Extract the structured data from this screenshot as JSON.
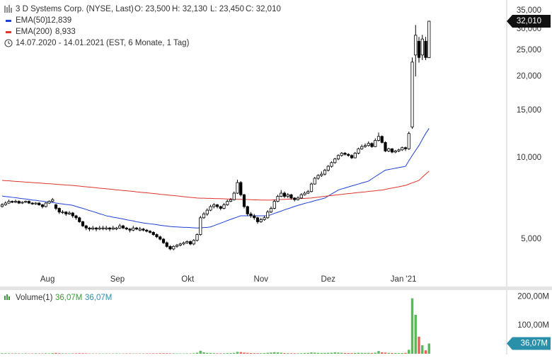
{
  "chart_data": [
    {
      "type": "candlestick",
      "title": "3 D Systems Corp. (NYSE, Last)",
      "open_label": "O: 23,500",
      "high_label": "H: 32,130",
      "low_label": "L: 23,450",
      "close_label": "C: 32,010",
      "date_range": "14.07.2020 - 14.01.2021",
      "note": "(EST, 6 Monate, 1 Tag)",
      "last_label": "32,010",
      "log_scale": true,
      "grid": true,
      "ylim": [
        3.34,
        38.35
      ],
      "yticks": [
        {
          "value": 35,
          "label": "35,000"
        },
        {
          "value": 30,
          "label": "30,000"
        },
        {
          "value": 25,
          "label": "25,000"
        },
        {
          "value": 20,
          "label": "20,000"
        },
        {
          "value": 15,
          "label": "15,000"
        },
        {
          "value": 10,
          "label": "10,000"
        },
        {
          "value": 5,
          "label": "5,000"
        }
      ],
      "xlim": [
        -0.63,
        150.1
      ],
      "xticks": [
        {
          "value": 13.5,
          "label": "Aug"
        },
        {
          "value": 34.3,
          "label": "Sep"
        },
        {
          "value": 55.2,
          "label": "Okt"
        },
        {
          "value": 77,
          "label": "Nov"
        },
        {
          "value": 97,
          "label": "Dez"
        },
        {
          "value": 119.4,
          "label": "Jan '21"
        }
      ],
      "up_color": "#ffffff",
      "down_color": "#000000",
      "ohlc": [
        [
          6.6,
          6.8,
          6.55,
          6.7
        ],
        [
          6.7,
          6.9,
          6.65,
          6.8
        ],
        [
          6.8,
          7.0,
          6.75,
          6.9
        ],
        [
          6.9,
          6.95,
          6.8,
          6.85
        ],
        [
          6.85,
          7.0,
          6.8,
          6.9
        ],
        [
          6.9,
          6.95,
          6.75,
          6.8
        ],
        [
          6.8,
          6.9,
          6.75,
          6.85
        ],
        [
          6.85,
          6.95,
          6.8,
          6.9
        ],
        [
          6.9,
          6.95,
          6.75,
          6.8
        ],
        [
          6.8,
          6.85,
          6.7,
          6.75
        ],
        [
          6.75,
          6.85,
          6.7,
          6.8
        ],
        [
          6.8,
          6.85,
          6.65,
          6.7
        ],
        [
          6.7,
          6.75,
          6.5,
          6.6
        ],
        [
          6.6,
          6.85,
          6.55,
          6.8
        ],
        [
          6.8,
          6.95,
          6.75,
          6.9
        ],
        [
          6.9,
          7.1,
          6.85,
          7.0
        ],
        [
          6.7,
          6.75,
          6.4,
          6.5
        ],
        [
          6.5,
          6.55,
          6.2,
          6.3
        ],
        [
          6.3,
          6.4,
          6.2,
          6.3
        ],
        [
          6.3,
          6.35,
          6.1,
          6.2
        ],
        [
          6.2,
          6.35,
          6.15,
          6.25
        ],
        [
          6.25,
          6.3,
          6.0,
          6.1
        ],
        [
          6.1,
          6.15,
          5.9,
          6.0
        ],
        [
          6.0,
          6.05,
          5.75,
          5.8
        ],
        [
          5.8,
          5.85,
          5.55,
          5.6
        ],
        [
          5.6,
          5.65,
          5.4,
          5.5
        ],
        [
          5.5,
          5.55,
          5.35,
          5.45
        ],
        [
          5.45,
          5.6,
          5.4,
          5.5
        ],
        [
          5.5,
          5.55,
          5.35,
          5.45
        ],
        [
          5.45,
          5.6,
          5.4,
          5.5
        ],
        [
          5.5,
          5.6,
          5.4,
          5.5
        ],
        [
          5.45,
          5.6,
          5.4,
          5.5
        ],
        [
          5.5,
          5.55,
          5.35,
          5.45
        ],
        [
          5.45,
          5.6,
          5.4,
          5.5
        ],
        [
          5.45,
          5.55,
          5.4,
          5.5
        ],
        [
          5.5,
          5.7,
          5.45,
          5.6
        ],
        [
          5.6,
          5.65,
          5.45,
          5.5
        ],
        [
          5.5,
          5.55,
          5.4,
          5.45
        ],
        [
          5.45,
          5.5,
          5.3,
          5.4
        ],
        [
          5.4,
          5.6,
          5.35,
          5.5
        ],
        [
          5.5,
          5.55,
          5.4,
          5.45
        ],
        [
          5.4,
          5.55,
          5.35,
          5.45
        ],
        [
          5.45,
          5.5,
          5.35,
          5.4
        ],
        [
          5.4,
          5.45,
          5.3,
          5.35
        ],
        [
          5.35,
          5.4,
          5.25,
          5.3
        ],
        [
          5.3,
          5.35,
          5.15,
          5.2
        ],
        [
          5.2,
          5.25,
          5.05,
          5.1
        ],
        [
          5.1,
          5.15,
          4.95,
          5.0
        ],
        [
          5.0,
          5.05,
          4.8,
          4.85
        ],
        [
          4.85,
          4.9,
          4.65,
          4.7
        ],
        [
          4.7,
          4.75,
          4.55,
          4.6
        ],
        [
          4.6,
          4.75,
          4.55,
          4.7
        ],
        [
          4.7,
          4.8,
          4.65,
          4.75
        ],
        [
          4.75,
          4.85,
          4.7,
          4.8
        ],
        [
          4.8,
          4.9,
          4.75,
          4.85
        ],
        [
          4.85,
          4.95,
          4.8,
          4.9
        ],
        [
          4.9,
          4.95,
          4.75,
          4.8
        ],
        [
          4.8,
          5.0,
          4.75,
          4.95
        ],
        [
          4.95,
          5.25,
          4.9,
          5.2
        ],
        [
          5.2,
          6.1,
          5.15,
          6.0
        ],
        [
          6.0,
          6.3,
          5.95,
          6.2
        ],
        [
          6.2,
          6.5,
          6.1,
          6.4
        ],
        [
          6.4,
          6.7,
          6.35,
          6.6
        ],
        [
          6.6,
          6.8,
          6.5,
          6.7
        ],
        [
          6.7,
          6.75,
          6.5,
          6.6
        ],
        [
          6.6,
          6.65,
          6.4,
          6.5
        ],
        [
          6.5,
          6.8,
          6.45,
          6.7
        ],
        [
          6.7,
          7.0,
          6.65,
          6.9
        ],
        [
          6.9,
          7.1,
          6.85,
          7.0
        ],
        [
          7.0,
          7.5,
          6.95,
          7.4
        ],
        [
          7.4,
          8.3,
          7.35,
          8.1
        ],
        [
          8.1,
          8.2,
          7.2,
          7.3
        ],
        [
          7.3,
          7.35,
          6.5,
          6.6
        ],
        [
          6.6,
          6.65,
          6.1,
          6.2
        ],
        [
          6.2,
          6.3,
          6.0,
          6.1
        ],
        [
          6.1,
          6.2,
          5.9,
          6.0
        ],
        [
          6.0,
          6.05,
          5.7,
          5.8
        ],
        [
          5.8,
          6.0,
          5.75,
          5.9
        ],
        [
          5.9,
          6.1,
          5.85,
          6.0
        ],
        [
          6.0,
          6.4,
          5.95,
          6.3
        ],
        [
          6.3,
          6.6,
          6.25,
          6.5
        ],
        [
          6.5,
          7.0,
          6.45,
          6.9
        ],
        [
          6.9,
          7.3,
          6.85,
          7.2
        ],
        [
          7.2,
          7.6,
          7.15,
          7.4
        ],
        [
          7.4,
          7.5,
          7.1,
          7.2
        ],
        [
          7.2,
          7.4,
          7.1,
          7.3
        ],
        [
          7.3,
          7.35,
          7.0,
          7.1
        ],
        [
          7.1,
          7.15,
          6.9,
          7.0
        ],
        [
          7.0,
          7.2,
          6.95,
          7.1
        ],
        [
          7.1,
          7.4,
          7.05,
          7.3
        ],
        [
          7.3,
          7.5,
          7.25,
          7.4
        ],
        [
          7.4,
          7.6,
          7.35,
          7.5
        ],
        [
          7.5,
          8.1,
          7.45,
          8.0
        ],
        [
          8.0,
          8.5,
          7.95,
          8.4
        ],
        [
          8.4,
          8.7,
          8.3,
          8.6
        ],
        [
          8.6,
          8.9,
          8.5,
          8.7
        ],
        [
          8.7,
          9.1,
          8.6,
          9.0
        ],
        [
          9.0,
          9.4,
          8.9,
          9.3
        ],
        [
          9.3,
          9.7,
          9.2,
          9.6
        ],
        [
          9.6,
          10.0,
          9.5,
          9.9
        ],
        [
          9.9,
          10.3,
          9.8,
          10.2
        ],
        [
          10.2,
          10.5,
          10.1,
          10.4
        ],
        [
          10.4,
          10.5,
          10.2,
          10.3
        ],
        [
          10.3,
          10.4,
          10.1,
          10.2
        ],
        [
          10.2,
          10.3,
          9.9,
          10.0
        ],
        [
          10.0,
          10.5,
          9.95,
          10.4
        ],
        [
          10.4,
          10.9,
          10.3,
          10.8
        ],
        [
          10.8,
          11.2,
          10.7,
          11.0
        ],
        [
          11.0,
          11.3,
          10.9,
          11.1
        ],
        [
          11.1,
          11.5,
          11.0,
          11.3
        ],
        [
          11.3,
          11.4,
          10.9,
          11.0
        ],
        [
          11.0,
          11.8,
          10.95,
          11.6
        ],
        [
          11.6,
          12.4,
          11.5,
          12.0
        ],
        [
          12.0,
          12.1,
          11.3,
          11.4
        ],
        [
          11.4,
          11.5,
          10.5,
          10.6
        ],
        [
          10.6,
          10.9,
          10.5,
          10.8
        ],
        [
          10.8,
          10.85,
          10.4,
          10.5
        ],
        [
          10.5,
          10.7,
          10.4,
          10.6
        ],
        [
          10.6,
          10.8,
          10.5,
          10.7
        ],
        [
          10.7,
          11.0,
          10.6,
          10.9
        ],
        [
          10.9,
          11.0,
          10.6,
          10.8
        ],
        [
          10.8,
          12.5,
          10.7,
          12.3
        ],
        [
          13.0,
          23.5,
          12.8,
          22.6
        ],
        [
          24.0,
          31.0,
          20.0,
          28.4
        ],
        [
          27.0,
          28.0,
          22.5,
          23.5
        ],
        [
          24.0,
          28.5,
          23.0,
          27.5
        ],
        [
          27.0,
          28.0,
          23.0,
          23.5
        ],
        [
          23.45,
          32.13,
          23.45,
          32.01
        ]
      ],
      "series": [
        {
          "name": "EMA(50)",
          "color": "#1f3fd6",
          "value_label": "12,839",
          "values": [
            7.22,
            7.19,
            7.17,
            7.14,
            7.12,
            7.09,
            7.06,
            7.04,
            7.01,
            6.98,
            6.96,
            6.93,
            6.91,
            6.88,
            6.85,
            6.83,
            6.8,
            6.77,
            6.75,
            6.72,
            6.7,
            6.67,
            6.61,
            6.55,
            6.5,
            6.44,
            6.38,
            6.33,
            6.27,
            6.21,
            6.16,
            6.1,
            6.07,
            6.03,
            6.0,
            5.97,
            5.94,
            5.9,
            5.87,
            5.84,
            5.8,
            5.77,
            5.74,
            5.72,
            5.7,
            5.68,
            5.66,
            5.63,
            5.61,
            5.59,
            5.57,
            5.56,
            5.55,
            5.54,
            5.53,
            5.53,
            5.52,
            5.51,
            5.5,
            5.51,
            5.52,
            5.53,
            5.55,
            5.61,
            5.67,
            5.73,
            5.79,
            5.86,
            5.92,
            5.98,
            6.04,
            6.1,
            6.1,
            6.1,
            6.1,
            6.1,
            6.1,
            6.1,
            6.1,
            6.1,
            6.16,
            6.23,
            6.29,
            6.35,
            6.42,
            6.48,
            6.54,
            6.61,
            6.67,
            6.72,
            6.78,
            6.83,
            6.88,
            6.94,
            6.99,
            7.04,
            7.1,
            7.22,
            7.35,
            7.47,
            7.6,
            7.67,
            7.73,
            7.8,
            7.87,
            7.93,
            8.0,
            8.07,
            8.13,
            8.2,
            8.36,
            8.52,
            8.68,
            8.84,
            9.0,
            9.05,
            9.1,
            9.15,
            9.2,
            9.25,
            9.3,
            9.75,
            10.2,
            10.65,
            11.1,
            11.7,
            12.3,
            12.84
          ]
        },
        {
          "name": "EMA(200)",
          "color": "#e0352b",
          "value_label": "8,933",
          "values": [
            8.25,
            8.23,
            8.22,
            8.2,
            8.18,
            8.17,
            8.15,
            8.13,
            8.12,
            8.1,
            8.08,
            8.07,
            8.05,
            8.03,
            8.02,
            8.0,
            7.98,
            7.97,
            7.95,
            7.93,
            7.92,
            7.9,
            7.88,
            7.86,
            7.83,
            7.81,
            7.79,
            7.77,
            7.75,
            7.72,
            7.7,
            7.68,
            7.66,
            7.64,
            7.61,
            7.59,
            7.57,
            7.55,
            7.53,
            7.51,
            7.48,
            7.46,
            7.44,
            7.42,
            7.4,
            7.38,
            7.36,
            7.33,
            7.31,
            7.29,
            7.27,
            7.25,
            7.23,
            7.21,
            7.18,
            7.16,
            7.14,
            7.12,
            7.1,
            7.09,
            7.09,
            7.08,
            7.08,
            7.07,
            7.06,
            7.06,
            7.05,
            7.04,
            7.04,
            7.03,
            7.02,
            7.02,
            7.01,
            7.01,
            7.0,
            6.99,
            6.99,
            6.98,
            6.98,
            6.97,
            6.98,
            6.99,
            7.0,
            7.01,
            7.02,
            7.03,
            7.04,
            7.05,
            7.06,
            7.07,
            7.08,
            7.09,
            7.1,
            7.13,
            7.15,
            7.18,
            7.2,
            7.23,
            7.25,
            7.28,
            7.3,
            7.32,
            7.35,
            7.37,
            7.39,
            7.42,
            7.44,
            7.46,
            7.48,
            7.51,
            7.53,
            7.55,
            7.58,
            7.6,
            7.64,
            7.69,
            7.73,
            7.77,
            7.81,
            7.86,
            7.9,
            7.99,
            8.08,
            8.16,
            8.25,
            8.48,
            8.7,
            8.93
          ]
        }
      ]
    },
    {
      "type": "bar",
      "title": "Volume(1)",
      "value_label": "36,07M",
      "value_label_2": "36,07M",
      "last_label": "36,07M",
      "up_color": "#5cb85c",
      "down_color": "#e8605a",
      "label_color": "#3a9a3a",
      "badge_color": "#2a8fa8",
      "ylim": [
        0,
        224
      ],
      "yticks": [
        {
          "value": 200,
          "label": "200,00M"
        },
        {
          "value": 100,
          "label": "100,00M"
        }
      ],
      "values": [
        2.1,
        1.8,
        1.6,
        1.4,
        1.7,
        1.3,
        1.2,
        1.5,
        1.1,
        1.3,
        1.6,
        1.2,
        1.4,
        1.9,
        1.5,
        2.4,
        3.0,
        2.2,
        1.6,
        1.4,
        1.3,
        1.5,
        1.7,
        2.0,
        1.9,
        1.6,
        1.2,
        1.1,
        1.0,
        1.2,
        1.1,
        1.3,
        1.0,
        1.2,
        1.4,
        1.1,
        1.0,
        1.2,
        1.3,
        1.1,
        1.0,
        1.2,
        1.1,
        1.3,
        1.4,
        1.6,
        1.5,
        1.8,
        2.0,
        1.9,
        1.6,
        1.4,
        1.3,
        1.2,
        1.1,
        1.3,
        1.2,
        1.5,
        3.5,
        10.5,
        5.0,
        3.2,
        2.8,
        2.1,
        1.8,
        1.6,
        1.9,
        2.2,
        2.5,
        3.0,
        6.5,
        5.8,
        4.0,
        3.1,
        2.5,
        2.2,
        2.0,
        1.8,
        2.4,
        3.5,
        4.2,
        5.5,
        4.8,
        3.6,
        2.5,
        2.2,
        1.9,
        1.7,
        1.8,
        2.0,
        2.6,
        2.9,
        4.5,
        3.8,
        3.2,
        2.7,
        3.0,
        3.3,
        3.6,
        4.8,
        4.1,
        3.5,
        2.8,
        2.5,
        2.4,
        3.0,
        3.4,
        3.1,
        2.9,
        3.3,
        2.7,
        3.8,
        9.5,
        5.0,
        4.2,
        3.0,
        2.6,
        2.4,
        2.3,
        2.5,
        3.1,
        14.0,
        195.0,
        137.0,
        60.0,
        30.0,
        12.0,
        36.07
      ]
    }
  ]
}
